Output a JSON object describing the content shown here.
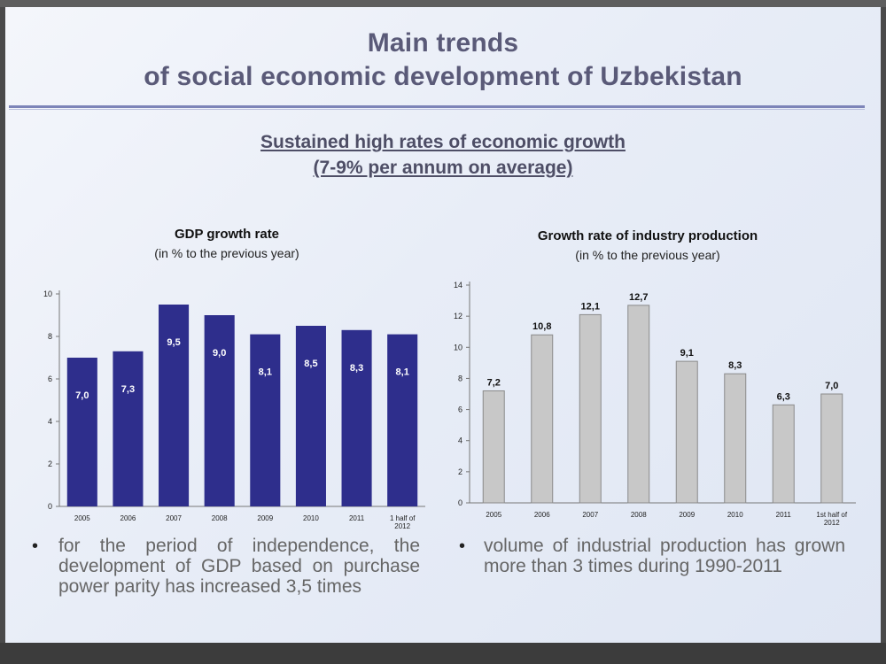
{
  "slide": {
    "title_line1": "Main trends",
    "title_line2": "of social economic development of Uzbekistan",
    "subtitle_line1": "Sustained high rates of economic growth",
    "subtitle_line2": "(7-9% per annum on average)",
    "accent_color": "#7d84b8"
  },
  "chart_data": [
    {
      "type": "bar",
      "title": "GDP growth rate",
      "subtitle": "(in % to the previous year)",
      "categories": [
        "2005",
        "2006",
        "2007",
        "2008",
        "2009",
        "2010",
        "2011",
        "1 half of 2012"
      ],
      "values": [
        7.0,
        7.3,
        9.5,
        9.0,
        8.1,
        8.5,
        8.3,
        8.1
      ],
      "value_labels": [
        "7,0",
        "7,3",
        "9,5",
        "9,0",
        "8,1",
        "8,5",
        "8,3",
        "8,1"
      ],
      "yticks": [
        "0",
        "2",
        "4",
        "6",
        "8",
        "10"
      ],
      "ylim": [
        0,
        10
      ],
      "bar_color": "#2e2e8c",
      "label_color": "#ffffff",
      "labels_inside": true
    },
    {
      "type": "bar",
      "title": "Growth rate of industry production",
      "subtitle": "(in % to the previous year)",
      "categories": [
        "2005",
        "2006",
        "2007",
        "2008",
        "2009",
        "2010",
        "2011",
        "1st half of 2012"
      ],
      "values": [
        7.2,
        10.8,
        12.1,
        12.7,
        9.1,
        8.3,
        6.3,
        7.0
      ],
      "value_labels": [
        "7,2",
        "10,8",
        "12,1",
        "12,7",
        "9,1",
        "8,3",
        "6,3",
        "7,0"
      ],
      "yticks": [
        "0",
        "2",
        "4",
        "6",
        "8",
        "10",
        "12",
        "14"
      ],
      "ylim": [
        0,
        14
      ],
      "bar_color": "#c8c8c8",
      "label_color": "#111111",
      "labels_inside": false
    }
  ],
  "bullets": [
    "for the period of independence, the development of GDP based on purchase power parity has increased 3,5 times",
    "volume of industrial production has grown more than 3 times during 1990-2011"
  ],
  "bullet_symbol": "•"
}
